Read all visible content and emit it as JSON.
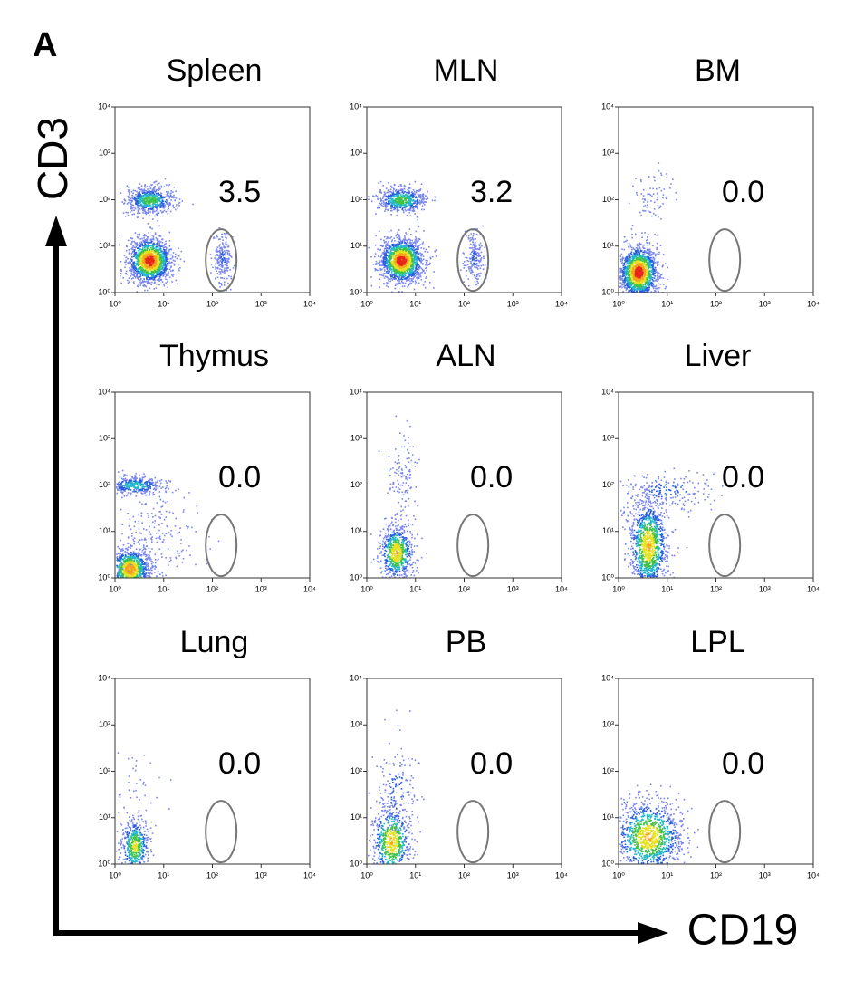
{
  "figure_label": "A",
  "y_axis_label": "CD3",
  "x_axis_label": "CD19",
  "chart_data": [
    {
      "type": "scatter",
      "title": "Spleen",
      "annotation": "3.5",
      "log_scale": true,
      "xlim": [
        1,
        10000
      ],
      "ylim": [
        1,
        10000
      ],
      "xticks": [
        {
          "value": 1,
          "label": "10⁰"
        },
        {
          "value": 10,
          "label": "10¹"
        },
        {
          "value": 100,
          "label": "10²"
        },
        {
          "value": 1000,
          "label": "10³"
        },
        {
          "value": 10000,
          "label": "10⁴"
        }
      ],
      "yticks": [
        {
          "value": 1,
          "label": "10⁰"
        },
        {
          "value": 10,
          "label": "10¹"
        },
        {
          "value": 100,
          "label": "10²"
        },
        {
          "value": 1000,
          "label": "10³"
        },
        {
          "value": 10000,
          "label": "10⁴"
        }
      ]
    },
    {
      "type": "scatter",
      "title": "MLN",
      "annotation": "3.2",
      "log_scale": true,
      "xlim": [
        1,
        10000
      ],
      "ylim": [
        1,
        10000
      ],
      "xticks": [
        {
          "value": 1,
          "label": "10⁰"
        },
        {
          "value": 10,
          "label": "10¹"
        },
        {
          "value": 100,
          "label": "10²"
        },
        {
          "value": 1000,
          "label": "10³"
        },
        {
          "value": 10000,
          "label": "10⁴"
        }
      ],
      "yticks": [
        {
          "value": 1,
          "label": "10⁰"
        },
        {
          "value": 10,
          "label": "10¹"
        },
        {
          "value": 100,
          "label": "10²"
        },
        {
          "value": 1000,
          "label": "10³"
        },
        {
          "value": 10000,
          "label": "10⁴"
        }
      ]
    },
    {
      "type": "scatter",
      "title": "BM",
      "annotation": "0.0",
      "log_scale": true,
      "xlim": [
        1,
        10000
      ],
      "ylim": [
        1,
        10000
      ],
      "xticks": [
        {
          "value": 1,
          "label": "10⁰"
        },
        {
          "value": 10,
          "label": "10¹"
        },
        {
          "value": 100,
          "label": "10²"
        },
        {
          "value": 1000,
          "label": "10³"
        },
        {
          "value": 10000,
          "label": "10⁴"
        }
      ],
      "yticks": [
        {
          "value": 1,
          "label": "10⁰"
        },
        {
          "value": 10,
          "label": "10¹"
        },
        {
          "value": 100,
          "label": "10²"
        },
        {
          "value": 1000,
          "label": "10³"
        },
        {
          "value": 10000,
          "label": "10⁴"
        }
      ]
    },
    {
      "type": "scatter",
      "title": "Thymus",
      "annotation": "0.0",
      "log_scale": true,
      "xlim": [
        1,
        10000
      ],
      "ylim": [
        1,
        10000
      ],
      "xticks": [
        {
          "value": 1,
          "label": "10⁰"
        },
        {
          "value": 10,
          "label": "10¹"
        },
        {
          "value": 100,
          "label": "10²"
        },
        {
          "value": 1000,
          "label": "10³"
        },
        {
          "value": 10000,
          "label": "10⁴"
        }
      ],
      "yticks": [
        {
          "value": 1,
          "label": "10⁰"
        },
        {
          "value": 10,
          "label": "10¹"
        },
        {
          "value": 100,
          "label": "10²"
        },
        {
          "value": 1000,
          "label": "10³"
        },
        {
          "value": 10000,
          "label": "10⁴"
        }
      ]
    },
    {
      "type": "scatter",
      "title": "ALN",
      "annotation": "0.0",
      "log_scale": true,
      "xlim": [
        1,
        10000
      ],
      "ylim": [
        1,
        10000
      ],
      "xticks": [
        {
          "value": 1,
          "label": "10⁰"
        },
        {
          "value": 10,
          "label": "10¹"
        },
        {
          "value": 100,
          "label": "10²"
        },
        {
          "value": 1000,
          "label": "10³"
        },
        {
          "value": 10000,
          "label": "10⁴"
        }
      ],
      "yticks": [
        {
          "value": 1,
          "label": "10⁰"
        },
        {
          "value": 10,
          "label": "10¹"
        },
        {
          "value": 100,
          "label": "10²"
        },
        {
          "value": 1000,
          "label": "10³"
        },
        {
          "value": 10000,
          "label": "10⁴"
        }
      ]
    },
    {
      "type": "scatter",
      "title": "Liver",
      "annotation": "0.0",
      "log_scale": true,
      "xlim": [
        1,
        10000
      ],
      "ylim": [
        1,
        10000
      ],
      "xticks": [
        {
          "value": 1,
          "label": "10⁰"
        },
        {
          "value": 10,
          "label": "10¹"
        },
        {
          "value": 100,
          "label": "10²"
        },
        {
          "value": 1000,
          "label": "10³"
        },
        {
          "value": 10000,
          "label": "10⁴"
        }
      ],
      "yticks": [
        {
          "value": 1,
          "label": "10⁰"
        },
        {
          "value": 10,
          "label": "10¹"
        },
        {
          "value": 100,
          "label": "10²"
        },
        {
          "value": 1000,
          "label": "10³"
        },
        {
          "value": 10000,
          "label": "10⁴"
        }
      ]
    },
    {
      "type": "scatter",
      "title": "Lung",
      "annotation": "0.0",
      "log_scale": true,
      "xlim": [
        1,
        10000
      ],
      "ylim": [
        1,
        10000
      ],
      "xticks": [
        {
          "value": 1,
          "label": "10⁰"
        },
        {
          "value": 10,
          "label": "10¹"
        },
        {
          "value": 100,
          "label": "10²"
        },
        {
          "value": 1000,
          "label": "10³"
        },
        {
          "value": 10000,
          "label": "10⁴"
        }
      ],
      "yticks": [
        {
          "value": 1,
          "label": "10⁰"
        },
        {
          "value": 10,
          "label": "10¹"
        },
        {
          "value": 100,
          "label": "10²"
        },
        {
          "value": 1000,
          "label": "10³"
        },
        {
          "value": 10000,
          "label": "10⁴"
        }
      ]
    },
    {
      "type": "scatter",
      "title": "PB",
      "annotation": "0.0",
      "log_scale": true,
      "xlim": [
        1,
        10000
      ],
      "ylim": [
        1,
        10000
      ],
      "xticks": [
        {
          "value": 1,
          "label": "10⁰"
        },
        {
          "value": 10,
          "label": "10¹"
        },
        {
          "value": 100,
          "label": "10²"
        },
        {
          "value": 1000,
          "label": "10³"
        },
        {
          "value": 10000,
          "label": "10⁴"
        }
      ],
      "yticks": [
        {
          "value": 1,
          "label": "10⁰"
        },
        {
          "value": 10,
          "label": "10¹"
        },
        {
          "value": 100,
          "label": "10²"
        },
        {
          "value": 1000,
          "label": "10³"
        },
        {
          "value": 10000,
          "label": "10⁴"
        }
      ]
    },
    {
      "type": "scatter",
      "title": "LPL",
      "annotation": "0.0",
      "log_scale": true,
      "xlim": [
        1,
        10000
      ],
      "ylim": [
        1,
        10000
      ],
      "xticks": [
        {
          "value": 1,
          "label": "10⁰"
        },
        {
          "value": 10,
          "label": "10¹"
        },
        {
          "value": 100,
          "label": "10²"
        },
        {
          "value": 1000,
          "label": "10³"
        },
        {
          "value": 10000,
          "label": "10⁴"
        }
      ],
      "yticks": [
        {
          "value": 1,
          "label": "10⁰"
        },
        {
          "value": 10,
          "label": "10¹"
        },
        {
          "value": 100,
          "label": "10²"
        },
        {
          "value": 1000,
          "label": "10³"
        },
        {
          "value": 10000,
          "label": "10⁴"
        }
      ]
    }
  ]
}
